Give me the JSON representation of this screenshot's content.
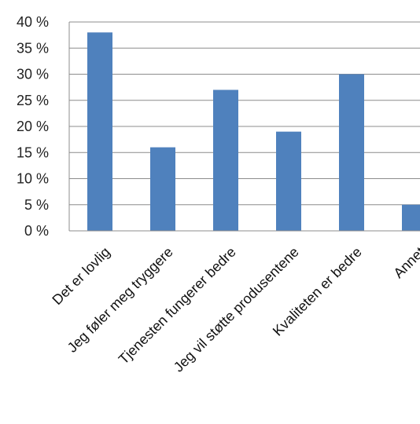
{
  "chart_data": {
    "type": "bar",
    "title": "",
    "xlabel": "",
    "ylabel": "",
    "categories": [
      "Det er lovlig",
      "Jeg føler meg tryggere",
      "Tjenesten fungerer bedre",
      "Jeg vil støtte produsentene",
      "Kvaliteten er bedre",
      "Annet"
    ],
    "values": [
      38,
      16,
      27,
      19,
      30,
      5
    ],
    "ytick_values": [
      0,
      5,
      10,
      15,
      20,
      25,
      30,
      35,
      40
    ],
    "ytick_labels": [
      "0 %",
      "5 %",
      "10 %",
      "15 %",
      "20 %",
      "25 %",
      "30 %",
      "35 %",
      "40 %"
    ],
    "ylim": [
      0,
      40
    ],
    "grid": true,
    "legend": "none",
    "colors": {
      "bar": "#4f81bd",
      "grid": "#8c8c8c",
      "axis": "#8c8c8c"
    }
  }
}
